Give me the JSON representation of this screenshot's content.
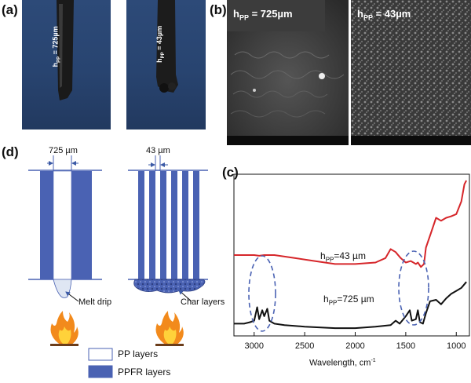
{
  "panel_labels": {
    "a": "(a)",
    "b": "(b)",
    "c": "(c)",
    "d": "(d)"
  },
  "panel_a": {
    "label_left": "h",
    "sub_left": "PP",
    "val_left": " = 725µm",
    "label_right": "h",
    "sub_right": "PP",
    "val_right": " = 43µm"
  },
  "panel_b": {
    "title_left_h": "h",
    "title_left_sub": "PP",
    "title_left_val": " = 725µm",
    "title_right_h": "h",
    "title_right_sub": "PP",
    "title_right_val": " = 43µm"
  },
  "panel_d": {
    "dim_left": "725 µm",
    "dim_right": "43 µm",
    "melt_drip": "Melt drip",
    "char_layers": "Char layers",
    "legend": [
      {
        "label": "PP layers",
        "color": "#ffffff"
      },
      {
        "label": "PPFR layers",
        "color": "#4a62b3"
      }
    ]
  },
  "colors": {
    "layer_blue": "#4a62b3",
    "red_curve": "#d6262a",
    "black_curve": "#111111"
  },
  "chart_data": {
    "type": "line",
    "title": "",
    "xlabel": "Wavelength, cm",
    "xlabel_sup": "-1",
    "ylabel": "",
    "xlim": [
      3200,
      870
    ],
    "x_reversed": true,
    "xticks": [
      3000,
      2500,
      2000,
      1500,
      1000
    ],
    "series": [
      {
        "name": "h_PP=43 µm",
        "label_h": "h",
        "label_sub": "PP",
        "label_val": "=43 µm",
        "color": "#d6262a",
        "points": [
          [
            3200,
            0.0
          ],
          [
            3100,
            0.0
          ],
          [
            3000,
            0.0
          ],
          [
            2950,
            -0.01
          ],
          [
            2900,
            0.0
          ],
          [
            2800,
            0.0
          ],
          [
            2600,
            -0.04
          ],
          [
            2400,
            -0.08
          ],
          [
            2200,
            -0.12
          ],
          [
            2000,
            -0.12
          ],
          [
            1800,
            -0.1
          ],
          [
            1700,
            -0.04
          ],
          [
            1650,
            0.08
          ],
          [
            1600,
            0.04
          ],
          [
            1550,
            -0.04
          ],
          [
            1500,
            -0.1
          ],
          [
            1450,
            -0.08
          ],
          [
            1400,
            -0.12
          ],
          [
            1380,
            -0.1
          ],
          [
            1350,
            -0.16
          ],
          [
            1320,
            -0.12
          ],
          [
            1300,
            0.1
          ],
          [
            1250,
            0.3
          ],
          [
            1200,
            0.5
          ],
          [
            1150,
            0.46
          ],
          [
            1100,
            0.5
          ],
          [
            1050,
            0.52
          ],
          [
            1000,
            0.55
          ],
          [
            950,
            0.72
          ],
          [
            920,
            0.95
          ],
          [
            900,
            1.0
          ]
        ]
      },
      {
        "name": "h_PP=725 µm",
        "label_h": "h",
        "label_sub": "PP",
        "label_val": "=725 µm",
        "color": "#111111",
        "points": [
          [
            3200,
            -0.92
          ],
          [
            3100,
            -0.92
          ],
          [
            3040,
            -0.9
          ],
          [
            3000,
            -0.88
          ],
          [
            2970,
            -0.7
          ],
          [
            2950,
            -0.86
          ],
          [
            2920,
            -0.74
          ],
          [
            2900,
            -0.82
          ],
          [
            2870,
            -0.72
          ],
          [
            2850,
            -0.88
          ],
          [
            2800,
            -0.92
          ],
          [
            2700,
            -0.94
          ],
          [
            2500,
            -0.96
          ],
          [
            2200,
            -0.98
          ],
          [
            2000,
            -0.98
          ],
          [
            1800,
            -0.96
          ],
          [
            1650,
            -0.94
          ],
          [
            1600,
            -0.88
          ],
          [
            1560,
            -0.92
          ],
          [
            1500,
            -0.82
          ],
          [
            1460,
            -0.74
          ],
          [
            1440,
            -0.88
          ],
          [
            1400,
            -0.86
          ],
          [
            1380,
            -0.74
          ],
          [
            1360,
            -0.9
          ],
          [
            1330,
            -0.92
          ],
          [
            1300,
            -0.78
          ],
          [
            1260,
            -0.62
          ],
          [
            1200,
            -0.6
          ],
          [
            1150,
            -0.66
          ],
          [
            1100,
            -0.58
          ],
          [
            1050,
            -0.52
          ],
          [
            1000,
            -0.48
          ],
          [
            950,
            -0.44
          ],
          [
            900,
            -0.36
          ]
        ]
      }
    ],
    "grid": false,
    "annotations": [
      "dashed ellipse near 2900 cm-1",
      "dashed ellipse near 1400 cm-1"
    ]
  }
}
